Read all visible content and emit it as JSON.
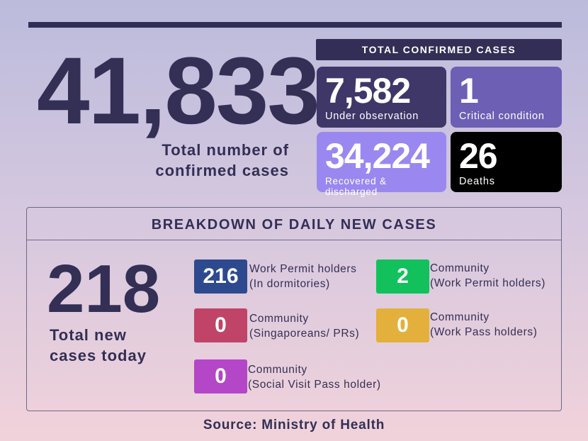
{
  "total": {
    "value": "41,833",
    "label_line1": "Total number of",
    "label_line2": "confirmed cases"
  },
  "confirmed": {
    "header": "TOTAL CONFIRMED CASES",
    "cards": [
      {
        "value": "7,582",
        "label": "Under observation",
        "color": "#3f3768"
      },
      {
        "value": "1",
        "label": "Critical condition",
        "color": "#6c5fb4"
      },
      {
        "value": "34,224",
        "label": "Recovered & discharged",
        "color": "#9a88f0"
      },
      {
        "value": "26",
        "label": "Deaths",
        "color": "#000000"
      }
    ]
  },
  "breakdown": {
    "title": "BREAKDOWN OF DAILY NEW CASES",
    "total": "218",
    "total_line1": "Total new",
    "total_line2": "cases today",
    "items": [
      {
        "value": "216",
        "line1": "Work Permit holders",
        "line2": "(In dormitories)",
        "color": "#2e4a8e"
      },
      {
        "value": "2",
        "line1": "Community",
        "line2": "(Work Permit holders)",
        "color": "#12c05c"
      },
      {
        "value": "0",
        "line1": "Community",
        "line2": "(Singaporeans/ PRs)",
        "color": "#c04467"
      },
      {
        "value": "0",
        "line1": "Community",
        "line2": "(Work Pass holders)",
        "color": "#e4b03c"
      },
      {
        "value": "0",
        "line1": "Community",
        "line2": "(Social Visit Pass holder)",
        "color": "#b446c8"
      }
    ]
  },
  "source": "Source: Ministry of Health"
}
